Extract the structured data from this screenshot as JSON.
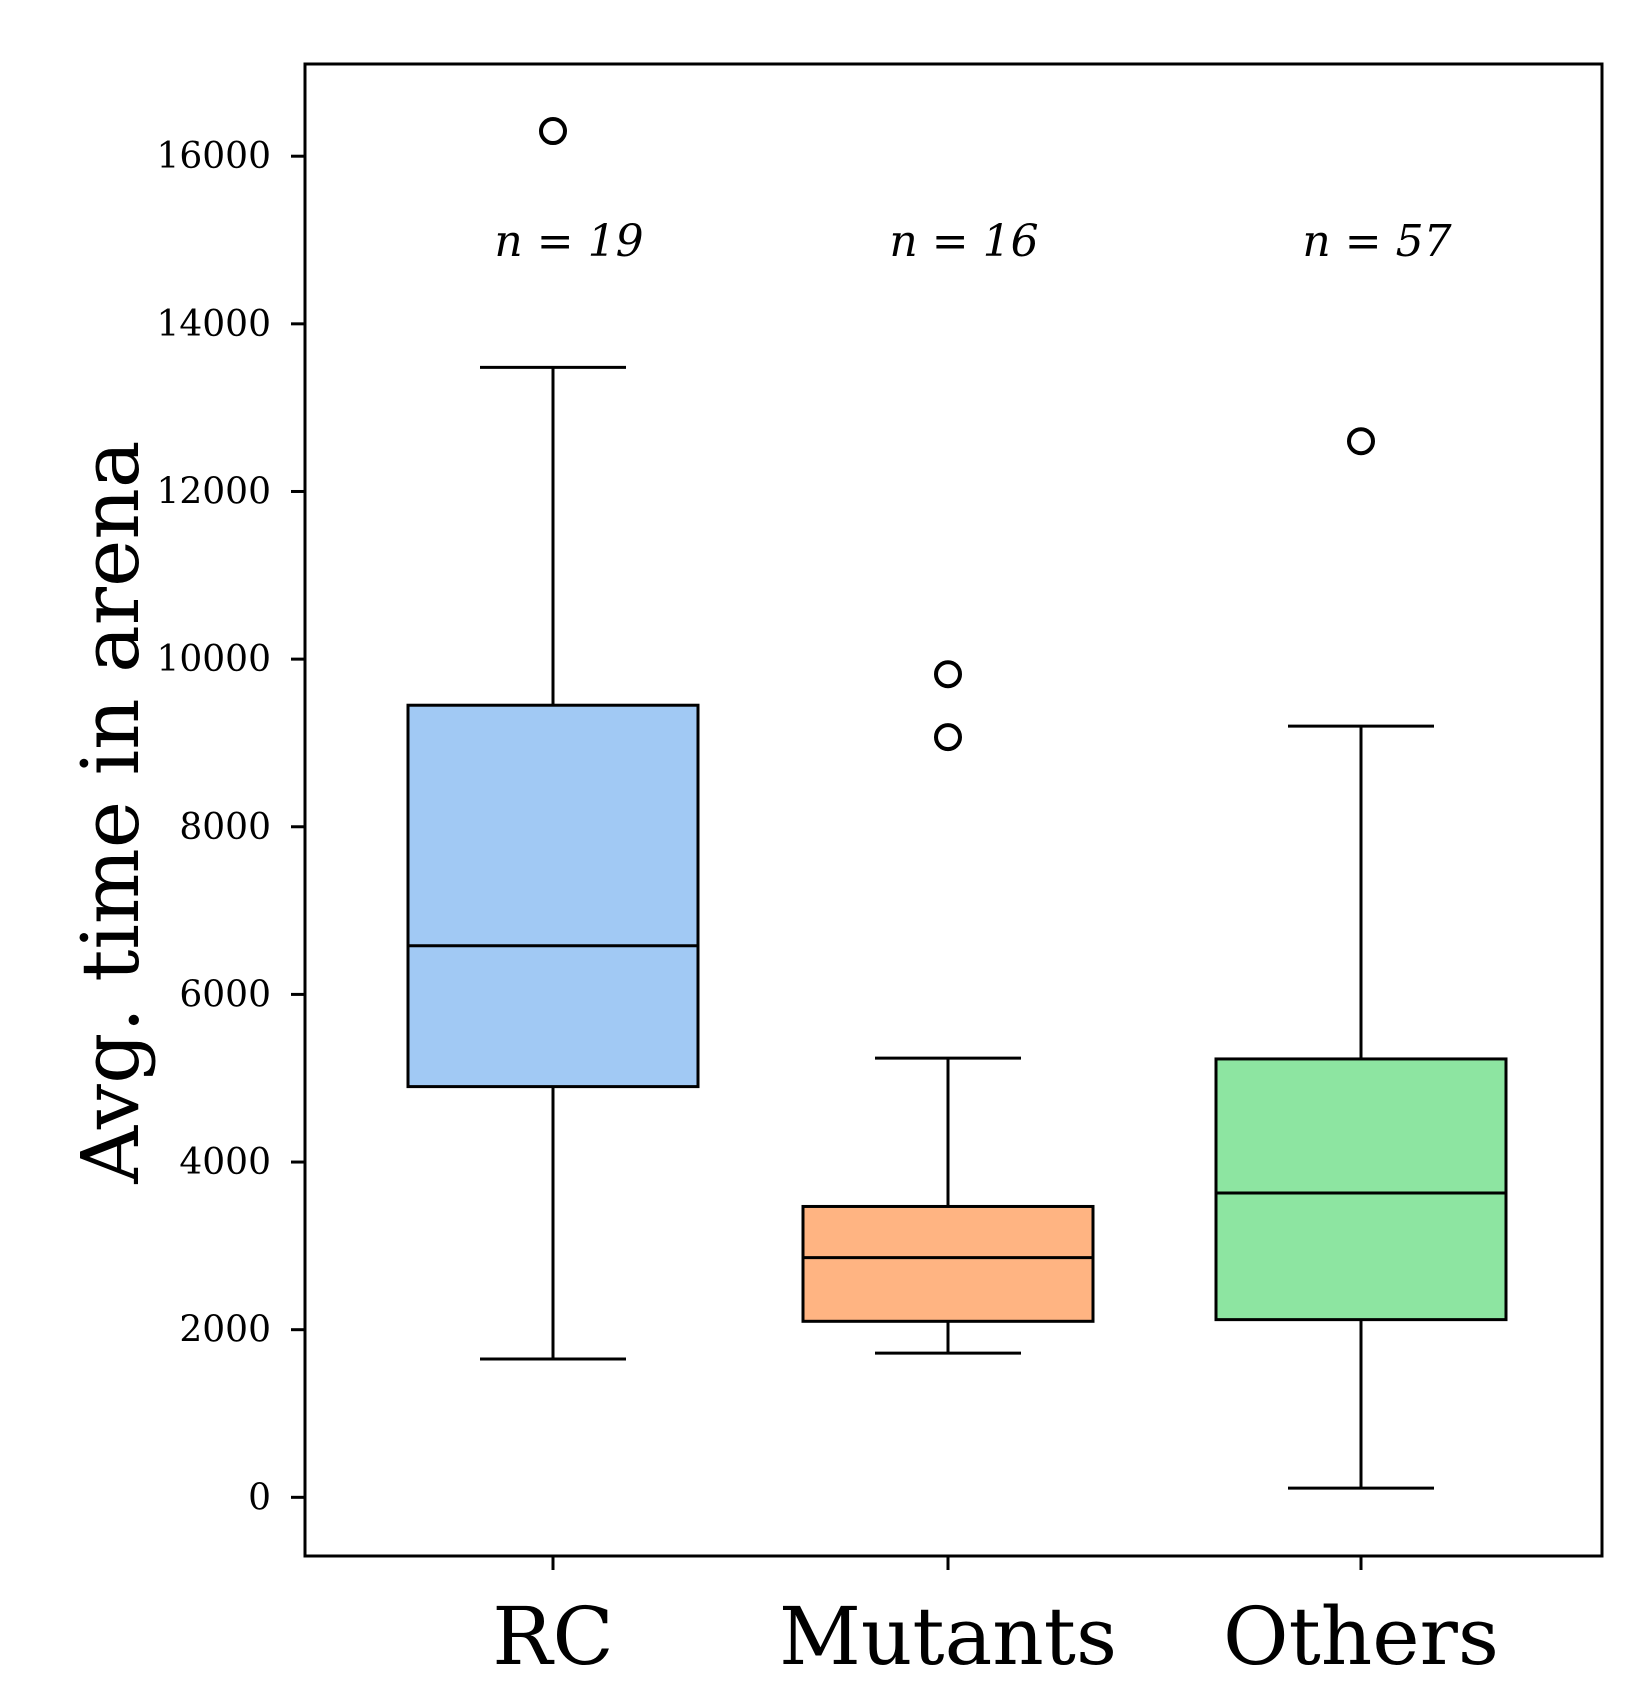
{
  "chart_data": {
    "type": "box",
    "ylabel": "Avg. time in arena",
    "xlabel": "",
    "title": "",
    "ylim": [
      -700,
      17100
    ],
    "yticks": [
      0,
      2000,
      4000,
      6000,
      8000,
      10000,
      12000,
      14000,
      16000
    ],
    "ytick_labels": [
      "0",
      "2000",
      "4000",
      "6000",
      "8000",
      "10000",
      "12000",
      "14000",
      "16000"
    ],
    "grid": false,
    "categories": [
      "RC",
      "Mutants",
      "Others"
    ],
    "boxes": [
      {
        "name": "RC",
        "color": "#a1c9f4",
        "whisker_low": 1650,
        "q1": 4900,
        "median": 6580,
        "q3": 9450,
        "whisker_high": 13480,
        "outliers": [
          16300
        ],
        "n_label": "n = 19"
      },
      {
        "name": "Mutants",
        "color": "#ffb482",
        "whisker_low": 1720,
        "q1": 2100,
        "median": 2860,
        "q3": 3470,
        "whisker_high": 5240,
        "outliers": [
          9070,
          9820
        ],
        "n_label": "n = 16"
      },
      {
        "name": "Others",
        "color": "#8de5a1",
        "whisker_low": 110,
        "q1": 2120,
        "median": 3630,
        "q3": 5230,
        "whisker_high": 9200,
        "outliers": [
          12600
        ],
        "n_label": "n = 57"
      }
    ]
  }
}
